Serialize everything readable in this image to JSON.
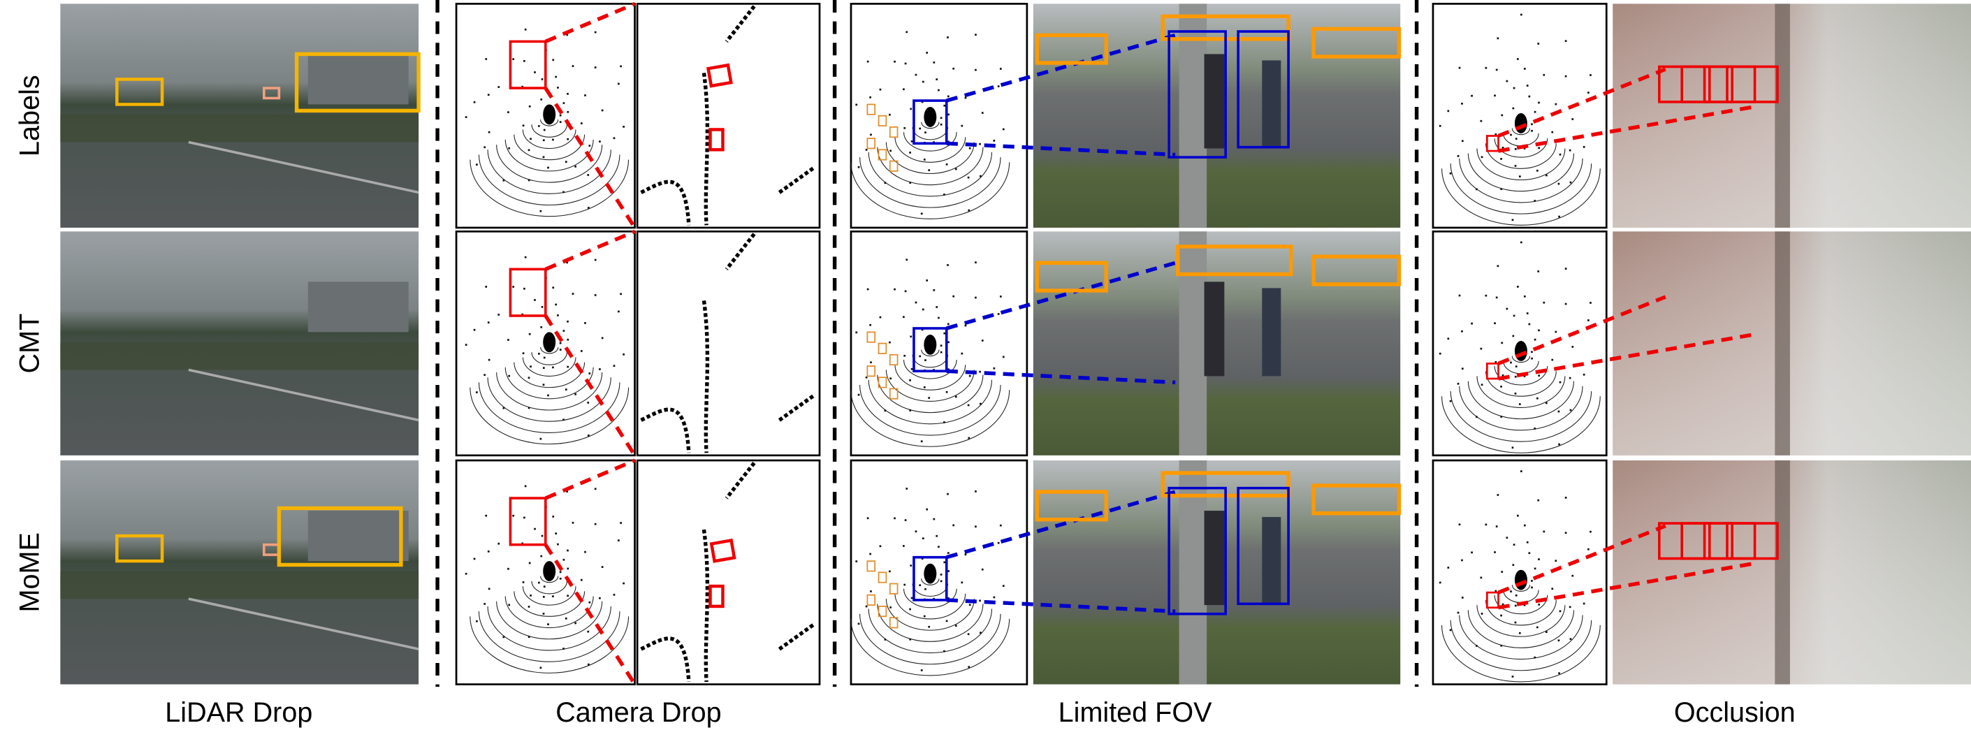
{
  "row_labels": [
    "Labels",
    "CMT",
    "MoME"
  ],
  "column_labels": [
    "LiDAR Drop",
    "Camera Drop",
    "Limited FOV",
    "Occlusion"
  ]
}
